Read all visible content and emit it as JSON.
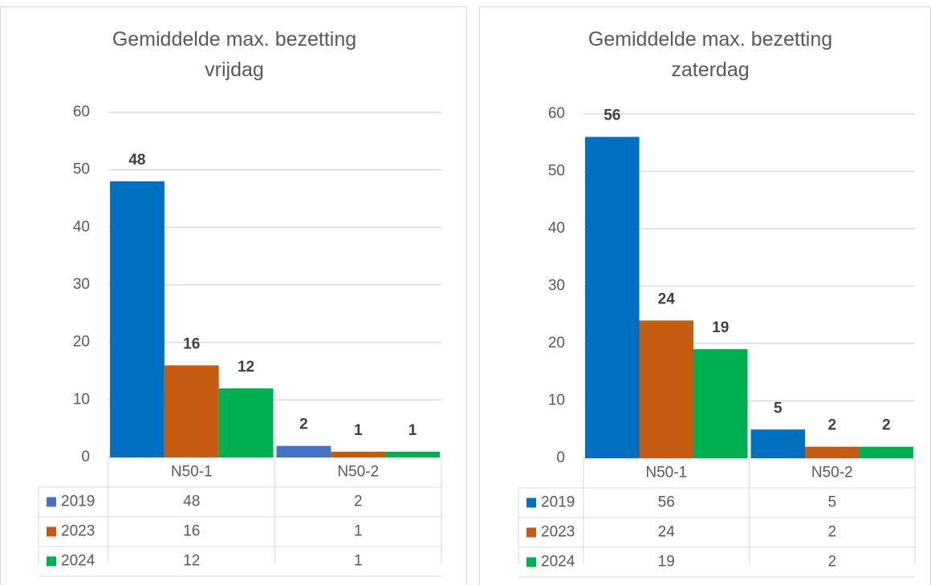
{
  "chart_data": [
    {
      "type": "bar",
      "title": "Gemiddelde max. bezetting vrijdag",
      "categories": [
        "N50-1",
        "N50-2"
      ],
      "series": [
        {
          "name": "2019",
          "color": "#4472c4",
          "bar_colors": [
            "#0070c0",
            "#4472c4"
          ],
          "values": [
            48,
            2
          ]
        },
        {
          "name": "2023",
          "color": "#c55a11",
          "values": [
            16,
            1
          ]
        },
        {
          "name": "2024",
          "color": "#00b050",
          "values": [
            12,
            1
          ]
        }
      ],
      "ylim": [
        0,
        60
      ],
      "yticks": [
        0,
        10,
        20,
        30,
        40,
        50,
        60
      ],
      "grid": true
    },
    {
      "type": "bar",
      "title": "Gemiddelde max. bezetting zaterdag",
      "categories": [
        "N50-1",
        "N50-2"
      ],
      "series": [
        {
          "name": "2019",
          "color": "#0070c0",
          "values": [
            56,
            5
          ]
        },
        {
          "name": "2023",
          "color": "#c55a11",
          "values": [
            24,
            2
          ]
        },
        {
          "name": "2024",
          "color": "#00b050",
          "values": [
            19,
            2
          ]
        }
      ],
      "ylim": [
        0,
        60
      ],
      "yticks": [
        0,
        10,
        20,
        30,
        40,
        50,
        60
      ],
      "grid": true
    }
  ]
}
